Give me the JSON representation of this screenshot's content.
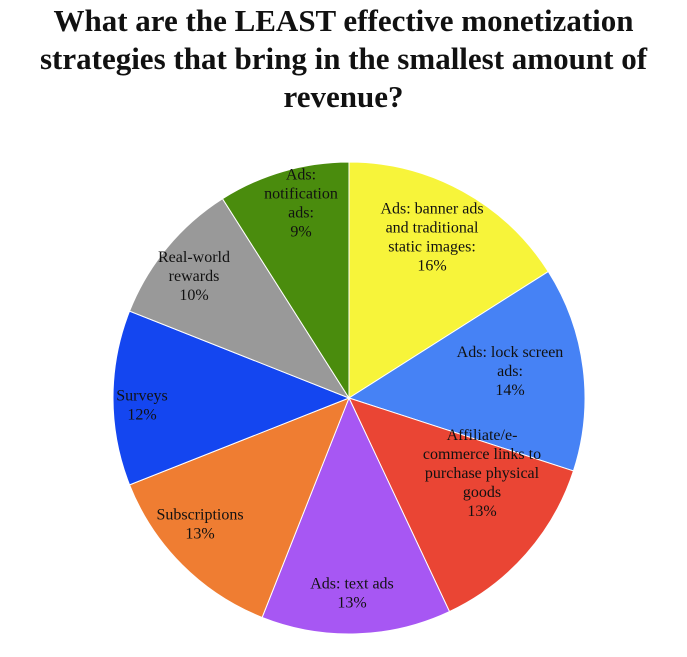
{
  "chart_data": {
    "type": "pie",
    "title_lines": [
      "What are the LEAST effective monetization",
      "strategies that bring in the smallest amount of",
      "revenue?"
    ],
    "legend": "none",
    "slices": [
      {
        "name": "Ads: banner ads and traditional static images",
        "value": 16,
        "percent_label": "16%",
        "label_lines": [
          "Ads: banner ads",
          "and traditional",
          "static images:",
          "16%"
        ],
        "color": "#f7f43a"
      },
      {
        "name": "Ads: lock screen ads",
        "value": 14,
        "percent_label": "14%",
        "label_lines": [
          "Ads: lock screen",
          "ads:",
          "14%"
        ],
        "color": "#4682f5"
      },
      {
        "name": "Affiliate/e-commerce links to purchase physical goods",
        "value": 13,
        "percent_label": "13%",
        "label_lines": [
          "Affiliate/e-",
          "commerce links to",
          "purchase physical",
          "goods",
          "13%"
        ],
        "color": "#ea4534"
      },
      {
        "name": "Ads: text ads",
        "value": 13,
        "percent_label": "13%",
        "label_lines": [
          "Ads: text ads",
          "13%"
        ],
        "color": "#a757f3"
      },
      {
        "name": "Subscriptions",
        "value": 13,
        "percent_label": "13%",
        "label_lines": [
          "Subscriptions",
          "13%"
        ],
        "color": "#ef7d32"
      },
      {
        "name": "Surveys",
        "value": 12,
        "percent_label": "12%",
        "label_lines": [
          "Surveys",
          "12%"
        ],
        "color": "#1446f0"
      },
      {
        "name": "Real-world rewards",
        "value": 10,
        "percent_label": "10%",
        "label_lines": [
          "Real-world",
          "rewards",
          "10%"
        ],
        "color": "#999999"
      },
      {
        "name": "Ads: notification ads",
        "value": 9,
        "percent_label": "9%",
        "label_lines": [
          "Ads:",
          "notification",
          "ads:",
          "9%"
        ],
        "color": "#4a8c0d"
      }
    ]
  }
}
